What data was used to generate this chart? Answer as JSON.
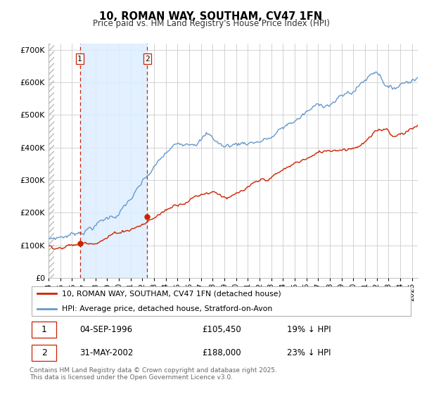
{
  "title": "10, ROMAN WAY, SOUTHAM, CV47 1FN",
  "subtitle": "Price paid vs. HM Land Registry's House Price Index (HPI)",
  "ylabel_ticks": [
    "£0",
    "£100K",
    "£200K",
    "£300K",
    "£400K",
    "£500K",
    "£600K",
    "£700K"
  ],
  "ytick_values": [
    0,
    100000,
    200000,
    300000,
    400000,
    500000,
    600000,
    700000
  ],
  "ylim": [
    0,
    720000
  ],
  "xlim_start": 1994.0,
  "xlim_end": 2025.5,
  "purchase1_x": 1996.67,
  "purchase1_y": 105450,
  "purchase1_label": "1",
  "purchase1_date": "04-SEP-1996",
  "purchase1_price": "£105,450",
  "purchase1_hpi": "19% ↓ HPI",
  "purchase2_x": 2002.42,
  "purchase2_y": 188000,
  "purchase2_label": "2",
  "purchase2_date": "31-MAY-2002",
  "purchase2_price": "£188,000",
  "purchase2_hpi": "23% ↓ HPI",
  "line_color_red": "#cc2200",
  "line_color_blue": "#6699cc",
  "shade_color": "#ddeeff",
  "hatch_color": "#cccccc",
  "legend_label_red": "10, ROMAN WAY, SOUTHAM, CV47 1FN (detached house)",
  "legend_label_blue": "HPI: Average price, detached house, Stratford-on-Avon",
  "footer": "Contains HM Land Registry data © Crown copyright and database right 2025.\nThis data is licensed under the Open Government Licence v3.0."
}
